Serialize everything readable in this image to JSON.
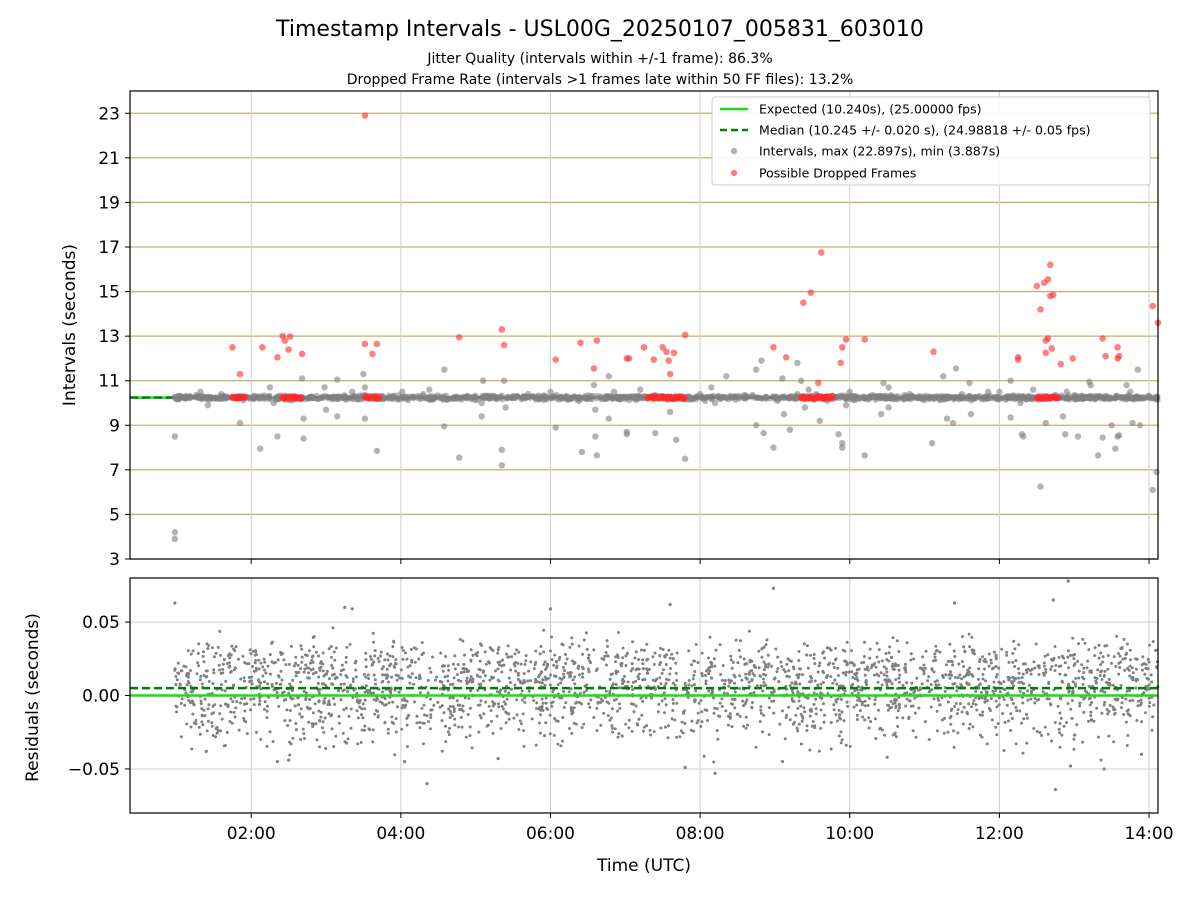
{
  "figure": {
    "title": "Timestamp Intervals - USL00G_20250107_005831_603010",
    "subtitle_1": "Jitter Quality (intervals within +/-1 frame): 86.3%",
    "subtitle_2": "Dropped Frame Rate (intervals >1 frames late within 50 FF files): 13.2%"
  },
  "colors": {
    "expected": "#1adc1a",
    "median": "#008000",
    "intervals": "#808080",
    "dropped": "#ff2a2a",
    "hgrid": "#c8b06a",
    "vgrid": "#cfcfcf"
  },
  "chart_data": [
    {
      "type": "scatter",
      "ylabel": "Intervals (seconds)",
      "xlabel": "",
      "xlim_hours": [
        0.38,
        14.12
      ],
      "ylim": [
        3,
        24
      ],
      "y_ticks": [
        3,
        5,
        7,
        9,
        11,
        13,
        15,
        17,
        19,
        21,
        23
      ],
      "x_ticks": [
        2,
        4,
        6,
        8,
        10,
        12,
        14
      ],
      "x_tick_labels": [
        "02:00",
        "04:00",
        "06:00",
        "08:00",
        "10:00",
        "12:00",
        "14:00"
      ],
      "grid": true,
      "legend_position": "top-right",
      "legend": [
        {
          "label": "Expected (10.240s), (25.00000 fps)",
          "kind": "line-solid"
        },
        {
          "label": "Median (10.245 +/- 0.020 s), (24.98818 +/- 0.05 fps)",
          "kind": "line-dashed"
        },
        {
          "label": "Intervals, max (22.897s), min (3.887s)",
          "kind": "dot-gray"
        },
        {
          "label": "Possible Dropped Frames",
          "kind": "dot-red"
        }
      ],
      "expected": 10.24,
      "median": 10.245,
      "series": [
        {
          "name": "Intervals",
          "points": [
            [
              0.98,
              8.5
            ],
            [
              0.98,
              4.2
            ],
            [
              0.98,
              3.9
            ],
            [
              1.18,
              10.3
            ],
            [
              1.32,
              10.5
            ],
            [
              1.42,
              9.9
            ],
            [
              1.6,
              10.4
            ],
            [
              1.85,
              9.1
            ],
            [
              2.12,
              7.95
            ],
            [
              2.25,
              10.7
            ],
            [
              2.3,
              10.0
            ],
            [
              2.35,
              8.5
            ],
            [
              2.68,
              11.1
            ],
            [
              2.7,
              9.3
            ],
            [
              2.7,
              8.4
            ],
            [
              2.98,
              10.7
            ],
            [
              3.0,
              9.7
            ],
            [
              3.15,
              9.4
            ],
            [
              3.15,
              11.05
            ],
            [
              3.35,
              10.5
            ],
            [
              3.5,
              11.3
            ],
            [
              3.52,
              10.7
            ],
            [
              3.52,
              9.3
            ],
            [
              3.68,
              7.85
            ],
            [
              4.02,
              10.5
            ],
            [
              4.3,
              10.4
            ],
            [
              4.38,
              10.6
            ],
            [
              4.58,
              8.95
            ],
            [
              4.58,
              11.5
            ],
            [
              4.78,
              7.55
            ],
            [
              5.08,
              10.0
            ],
            [
              5.08,
              9.4
            ],
            [
              5.1,
              11.0
            ],
            [
              5.35,
              7.2
            ],
            [
              5.35,
              7.9
            ],
            [
              5.38,
              11.0
            ],
            [
              5.4,
              9.8
            ],
            [
              5.7,
              10.4
            ],
            [
              6.0,
              10.5
            ],
            [
              6.07,
              8.9
            ],
            [
              6.38,
              10.1
            ],
            [
              6.42,
              7.8
            ],
            [
              6.58,
              10.8
            ],
            [
              6.6,
              9.7
            ],
            [
              6.6,
              8.5
            ],
            [
              6.62,
              7.65
            ],
            [
              6.78,
              11.2
            ],
            [
              6.78,
              9.3
            ],
            [
              6.85,
              10.5
            ],
            [
              7.02,
              8.7
            ],
            [
              7.02,
              8.6
            ],
            [
              7.2,
              10.6
            ],
            [
              7.4,
              8.65
            ],
            [
              7.6,
              9.6
            ],
            [
              7.68,
              8.35
            ],
            [
              7.8,
              7.5
            ],
            [
              8.0,
              10.4
            ],
            [
              8.15,
              10.7
            ],
            [
              8.2,
              10.0
            ],
            [
              8.35,
              11.2
            ],
            [
              8.5,
              10.3
            ],
            [
              8.75,
              11.5
            ],
            [
              8.75,
              9.0
            ],
            [
              8.82,
              11.9
            ],
            [
              8.85,
              8.65
            ],
            [
              8.98,
              8.0
            ],
            [
              9.1,
              11.1
            ],
            [
              9.12,
              9.5
            ],
            [
              9.2,
              8.8
            ],
            [
              9.3,
              11.8
            ],
            [
              9.3,
              10.4
            ],
            [
              9.35,
              11.0
            ],
            [
              9.4,
              9.8
            ],
            [
              9.45,
              10.6
            ],
            [
              9.55,
              10.4
            ],
            [
              9.6,
              9.2
            ],
            [
              9.7,
              10.1
            ],
            [
              9.85,
              8.6
            ],
            [
              9.9,
              8.0
            ],
            [
              9.9,
              8.2
            ],
            [
              9.95,
              9.9
            ],
            [
              10.0,
              10.5
            ],
            [
              10.2,
              10.2
            ],
            [
              10.2,
              7.65
            ],
            [
              10.42,
              9.5
            ],
            [
              10.45,
              10.9
            ],
            [
              10.52,
              10.7
            ],
            [
              10.52,
              9.8
            ],
            [
              10.8,
              10.4
            ],
            [
              11.1,
              8.2
            ],
            [
              11.12,
              10.2
            ],
            [
              11.25,
              11.2
            ],
            [
              11.3,
              9.3
            ],
            [
              11.38,
              9.1
            ],
            [
              11.42,
              11.55
            ],
            [
              11.5,
              10.4
            ],
            [
              11.6,
              10.9
            ],
            [
              11.62,
              9.5
            ],
            [
              11.85,
              10.5
            ],
            [
              12.0,
              10.5
            ],
            [
              12.15,
              9.35
            ],
            [
              12.15,
              11.0
            ],
            [
              12.28,
              10.0
            ],
            [
              12.3,
              8.6
            ],
            [
              12.32,
              8.5
            ],
            [
              12.45,
              10.6
            ],
            [
              12.55,
              6.25
            ],
            [
              12.62,
              9.1
            ],
            [
              12.85,
              9.4
            ],
            [
              12.88,
              8.6
            ],
            [
              12.9,
              10.5
            ],
            [
              13.05,
              8.5
            ],
            [
              13.1,
              10.2
            ],
            [
              13.2,
              10.95
            ],
            [
              13.22,
              10.8
            ],
            [
              13.32,
              7.65
            ],
            [
              13.38,
              8.45
            ],
            [
              13.4,
              10.2
            ],
            [
              13.5,
              9.0
            ],
            [
              13.55,
              7.95
            ],
            [
              13.58,
              8.5
            ],
            [
              13.6,
              8.55
            ],
            [
              13.7,
              10.8
            ],
            [
              13.75,
              10.5
            ],
            [
              13.78,
              9.1
            ],
            [
              13.85,
              11.5
            ],
            [
              13.88,
              9.0
            ],
            [
              14.05,
              6.1
            ],
            [
              14.1,
              6.9
            ],
            [
              14.1,
              10.2
            ]
          ]
        },
        {
          "name": "Possible Dropped Frames",
          "points": [
            [
              1.75,
              12.5
            ],
            [
              1.85,
              11.3
            ],
            [
              2.15,
              12.5
            ],
            [
              2.35,
              12.05
            ],
            [
              2.42,
              13.0
            ],
            [
              2.45,
              12.8
            ],
            [
              2.5,
              12.4
            ],
            [
              2.52,
              12.98
            ],
            [
              2.68,
              12.2
            ],
            [
              3.52,
              22.9
            ],
            [
              3.52,
              12.65
            ],
            [
              3.62,
              12.2
            ],
            [
              3.68,
              12.65
            ],
            [
              4.78,
              12.95
            ],
            [
              5.35,
              13.3
            ],
            [
              5.38,
              12.6
            ],
            [
              6.07,
              11.95
            ],
            [
              6.4,
              12.7
            ],
            [
              6.58,
              11.55
            ],
            [
              6.62,
              12.8
            ],
            [
              7.02,
              12.0
            ],
            [
              7.05,
              12.0
            ],
            [
              7.25,
              12.5
            ],
            [
              7.38,
              11.95
            ],
            [
              7.5,
              12.5
            ],
            [
              7.55,
              12.3
            ],
            [
              7.58,
              11.9
            ],
            [
              7.6,
              11.3
            ],
            [
              7.65,
              12.25
            ],
            [
              7.8,
              13.05
            ],
            [
              8.98,
              12.5
            ],
            [
              9.15,
              12.05
            ],
            [
              9.38,
              14.5
            ],
            [
              9.48,
              14.95
            ],
            [
              9.58,
              10.9
            ],
            [
              9.62,
              16.75
            ],
            [
              9.88,
              11.8
            ],
            [
              9.9,
              12.5
            ],
            [
              9.95,
              12.85
            ],
            [
              10.2,
              12.85
            ],
            [
              11.12,
              12.3
            ],
            [
              12.25,
              11.95
            ],
            [
              12.25,
              12.05
            ],
            [
              12.5,
              15.25
            ],
            [
              12.55,
              14.2
            ],
            [
              12.6,
              15.4
            ],
            [
              12.62,
              12.8
            ],
            [
              12.62,
              12.25
            ],
            [
              12.65,
              15.55
            ],
            [
              12.65,
              12.9
            ],
            [
              12.68,
              16.2
            ],
            [
              12.68,
              14.8
            ],
            [
              12.7,
              12.45
            ],
            [
              12.72,
              14.85
            ],
            [
              12.82,
              11.75
            ],
            [
              12.98,
              12.0
            ],
            [
              13.38,
              12.9
            ],
            [
              13.42,
              12.1
            ],
            [
              13.58,
              12.0
            ],
            [
              13.6,
              12.1
            ],
            [
              13.58,
              12.5
            ],
            [
              14.05,
              14.35
            ],
            [
              14.12,
              13.6
            ]
          ],
          "clusters_at_expected": [
            [
              1.75,
              1.92
            ],
            [
              2.42,
              2.68
            ],
            [
              3.52,
              3.72
            ],
            [
              7.3,
              7.8
            ],
            [
              9.35,
              9.78
            ],
            [
              12.5,
              12.8
            ]
          ]
        }
      ]
    },
    {
      "type": "scatter",
      "ylabel": "Residuals (seconds)",
      "xlabel": "Time (UTC)",
      "xlim_hours": [
        0.38,
        14.12
      ],
      "ylim": [
        -0.08,
        0.08
      ],
      "y_ticks": [
        0.05,
        0.0,
        -0.05
      ],
      "y_tick_labels": [
        "0.05",
        "0.00",
        "−0.05"
      ],
      "x_ticks": [
        2,
        4,
        6,
        8,
        10,
        12,
        14
      ],
      "x_tick_labels": [
        "02:00",
        "04:00",
        "06:00",
        "08:00",
        "10:00",
        "12:00",
        "14:00"
      ],
      "grid": true,
      "expected": 0.0,
      "median": 0.005,
      "data_range_hours": [
        0.97,
        14.12
      ],
      "band_levels": [
        0.02,
        0.0,
        -0.02
      ],
      "outliers": [
        [
          0.98,
          0.063
        ],
        [
          8.98,
          0.073
        ],
        [
          12.92,
          0.078
        ],
        [
          12.72,
          0.065
        ],
        [
          3.35,
          0.059
        ],
        [
          3.25,
          0.06
        ],
        [
          6.0,
          0.059
        ],
        [
          7.6,
          0.062
        ],
        [
          11.4,
          0.063
        ],
        [
          4.05,
          -0.045
        ],
        [
          4.35,
          -0.06
        ],
        [
          7.8,
          -0.049
        ],
        [
          8.2,
          -0.053
        ],
        [
          9.1,
          -0.045
        ],
        [
          12.75,
          -0.064
        ],
        [
          12.95,
          -0.048
        ],
        [
          13.4,
          -0.05
        ],
        [
          2.35,
          -0.045
        ],
        [
          2.5,
          -0.044
        ],
        [
          1.4,
          -0.038
        ],
        [
          5.3,
          -0.043
        ],
        [
          10.5,
          -0.042
        ],
        [
          13.9,
          -0.04
        ]
      ]
    }
  ]
}
